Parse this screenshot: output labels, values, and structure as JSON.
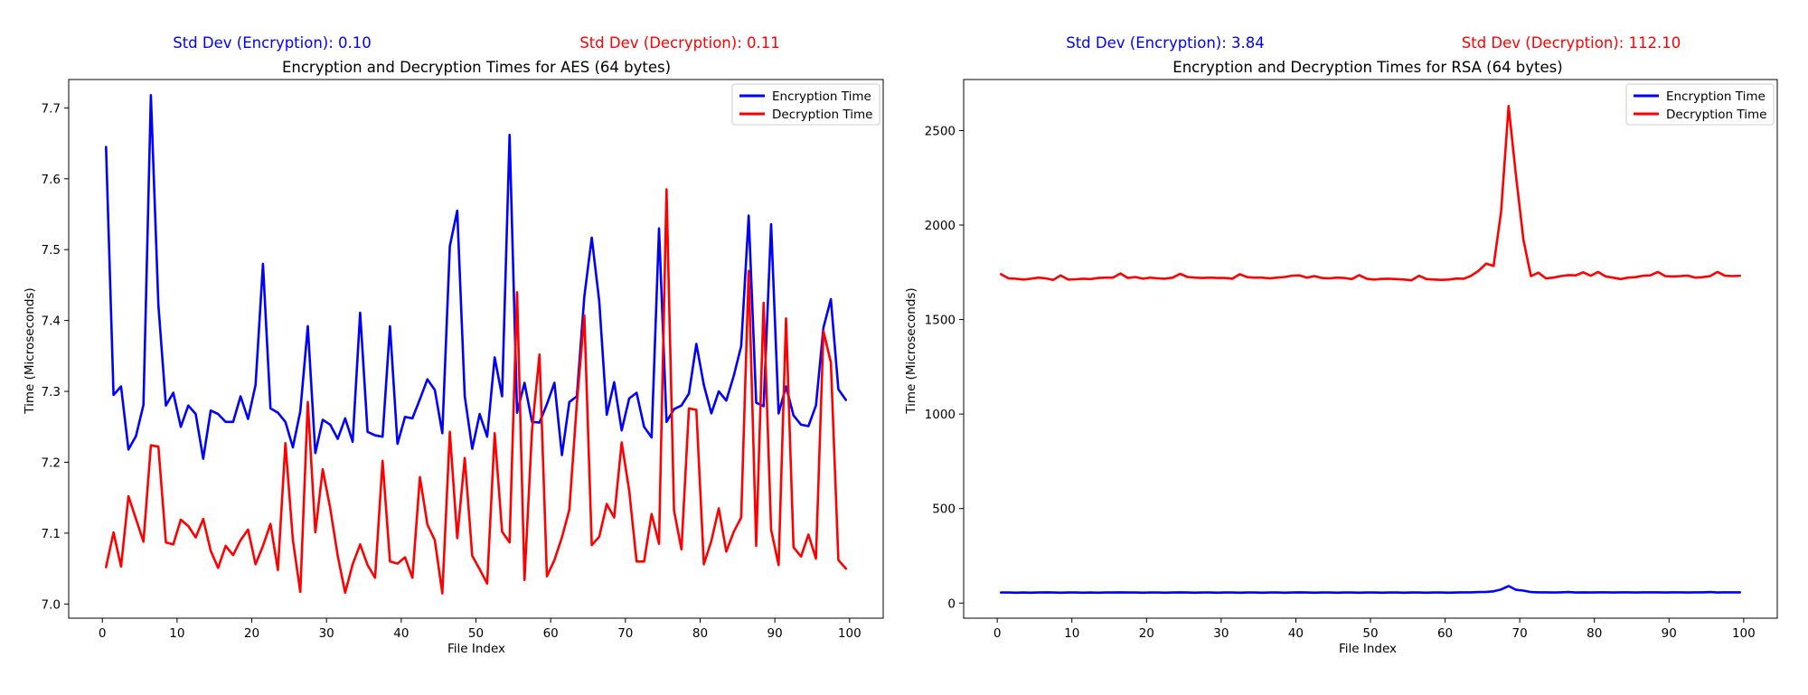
{
  "chart_data": [
    {
      "type": "line",
      "title": "Encryption and Decryption Times for AES (64 bytes)",
      "xlabel": "File Index",
      "ylabel": "Time (Microseconds)",
      "std_enc_text": "Std Dev (Encryption): 0.10",
      "std_dec_text": "Std Dev (Decryption): 0.11",
      "xlim": [
        -4.5,
        104.5
      ],
      "ylim": [
        6.98,
        7.74
      ],
      "xticks": [
        0,
        10,
        20,
        30,
        40,
        50,
        60,
        70,
        80,
        90,
        100
      ],
      "yticks": [
        7.0,
        7.1,
        7.2,
        7.3,
        7.4,
        7.5,
        7.6,
        7.7
      ],
      "ytick_decimals": 1,
      "legend": "top-right",
      "x": [
        0.5,
        1.5,
        2.5,
        3.5,
        4.5,
        5.5,
        6.5,
        7.5,
        8.5,
        9.5,
        10.5,
        11.5,
        12.5,
        13.5,
        14.5,
        15.5,
        16.5,
        17.5,
        18.5,
        19.5,
        20.5,
        21.5,
        22.5,
        23.5,
        24.5,
        25.5,
        26.5,
        27.5,
        28.5,
        29.5,
        30.5,
        31.5,
        32.5,
        33.5,
        34.5,
        35.5,
        36.5,
        37.5,
        38.5,
        39.5,
        40.5,
        41.5,
        42.5,
        43.5,
        44.5,
        45.5,
        46.5,
        47.5,
        48.5,
        49.5,
        50.5,
        51.5,
        52.5,
        53.5,
        54.5,
        55.5,
        56.5,
        57.5,
        58.5,
        59.5,
        60.5,
        61.5,
        62.5,
        63.5,
        64.5,
        65.5,
        66.5,
        67.5,
        68.5,
        69.5,
        70.5,
        71.5,
        72.5,
        73.5,
        74.5,
        75.5,
        76.5,
        77.5,
        78.5,
        79.5,
        80.5,
        81.5,
        82.5,
        83.5,
        84.5,
        85.5,
        86.5,
        87.5,
        88.5,
        89.5,
        90.5,
        91.5,
        92.5,
        93.5,
        94.5,
        95.5,
        96.5,
        97.5,
        98.5,
        99.5
      ],
      "series": [
        {
          "name": "Encryption Time",
          "color": "#0000ff",
          "values": [
            7.645,
            7.295,
            7.307,
            7.218,
            7.237,
            7.281,
            7.718,
            7.422,
            7.28,
            7.298,
            7.25,
            7.28,
            7.268,
            7.205,
            7.273,
            7.268,
            7.257,
            7.257,
            7.293,
            7.261,
            7.309,
            7.48,
            7.276,
            7.27,
            7.257,
            7.221,
            7.272,
            7.392,
            7.213,
            7.26,
            7.253,
            7.233,
            7.262,
            7.229,
            7.411,
            7.243,
            7.238,
            7.236,
            7.392,
            7.226,
            7.264,
            7.262,
            7.289,
            7.317,
            7.302,
            7.241,
            7.505,
            7.555,
            7.293,
            7.219,
            7.268,
            7.236,
            7.348,
            7.293,
            7.662,
            7.27,
            7.312,
            7.257,
            7.256,
            7.282,
            7.312,
            7.21,
            7.285,
            7.293,
            7.434,
            7.517,
            7.427,
            7.267,
            7.313,
            7.245,
            7.29,
            7.298,
            7.25,
            7.235,
            7.53,
            7.257,
            7.275,
            7.28,
            7.297,
            7.367,
            7.309,
            7.269,
            7.3,
            7.287,
            7.322,
            7.364,
            7.548,
            7.284,
            7.279,
            7.536,
            7.269,
            7.307,
            7.266,
            7.253,
            7.251,
            7.28,
            7.39,
            7.43,
            7.303,
            7.288
          ]
        },
        {
          "name": "Decryption Time",
          "color": "#ff0000",
          "values": [
            7.052,
            7.101,
            7.053,
            7.152,
            7.12,
            7.088,
            7.224,
            7.222,
            7.087,
            7.084,
            7.119,
            7.11,
            7.094,
            7.12,
            7.075,
            7.051,
            7.082,
            7.069,
            7.09,
            7.105,
            7.056,
            7.082,
            7.113,
            7.048,
            7.227,
            7.09,
            7.017,
            7.285,
            7.101,
            7.19,
            7.135,
            7.068,
            7.016,
            7.056,
            7.084,
            7.055,
            7.037,
            7.202,
            7.06,
            7.057,
            7.066,
            7.037,
            7.179,
            7.112,
            7.09,
            7.015,
            7.243,
            7.093,
            7.206,
            7.068,
            7.049,
            7.029,
            7.241,
            7.102,
            7.087,
            7.44,
            7.034,
            7.245,
            7.352,
            7.039,
            7.062,
            7.094,
            7.133,
            7.283,
            7.407,
            7.083,
            7.095,
            7.141,
            7.122,
            7.228,
            7.16,
            7.06,
            7.06,
            7.127,
            7.085,
            7.585,
            7.132,
            7.077,
            7.276,
            7.274,
            7.056,
            7.089,
            7.135,
            7.074,
            7.102,
            7.122,
            7.47,
            7.082,
            7.425,
            7.105,
            7.055,
            7.403,
            7.08,
            7.067,
            7.098,
            7.064,
            7.385,
            7.341,
            7.062,
            7.05
          ]
        }
      ]
    },
    {
      "type": "line",
      "title": "Encryption and Decryption Times for RSA (64 bytes)",
      "xlabel": "File Index",
      "ylabel": "Time (Microseconds)",
      "std_enc_text": "Std Dev (Encryption): 3.84",
      "std_dec_text": "Std Dev (Decryption): 112.10",
      "xlim": [
        -4.5,
        104.5
      ],
      "ylim": [
        -80,
        2770
      ],
      "xticks": [
        0,
        10,
        20,
        30,
        40,
        50,
        60,
        70,
        80,
        90,
        100
      ],
      "yticks": [
        0,
        500,
        1000,
        1500,
        2000,
        2500
      ],
      "ytick_decimals": 0,
      "legend": "top-right",
      "x": [
        0.5,
        1.5,
        2.5,
        3.5,
        4.5,
        5.5,
        6.5,
        7.5,
        8.5,
        9.5,
        10.5,
        11.5,
        12.5,
        13.5,
        14.5,
        15.5,
        16.5,
        17.5,
        18.5,
        19.5,
        20.5,
        21.5,
        22.5,
        23.5,
        24.5,
        25.5,
        26.5,
        27.5,
        28.5,
        29.5,
        30.5,
        31.5,
        32.5,
        33.5,
        34.5,
        35.5,
        36.5,
        37.5,
        38.5,
        39.5,
        40.5,
        41.5,
        42.5,
        43.5,
        44.5,
        45.5,
        46.5,
        47.5,
        48.5,
        49.5,
        50.5,
        51.5,
        52.5,
        53.5,
        54.5,
        55.5,
        56.5,
        57.5,
        58.5,
        59.5,
        60.5,
        61.5,
        62.5,
        63.5,
        64.5,
        65.5,
        66.5,
        67.5,
        68.5,
        69.5,
        70.5,
        71.5,
        72.5,
        73.5,
        74.5,
        75.5,
        76.5,
        77.5,
        78.5,
        79.5,
        80.5,
        81.5,
        82.5,
        83.5,
        84.5,
        85.5,
        86.5,
        87.5,
        88.5,
        89.5,
        90.5,
        91.5,
        92.5,
        93.5,
        94.5,
        95.5,
        96.5,
        97.5,
        98.5,
        99.5
      ],
      "series": [
        {
          "name": "Encryption Time",
          "color": "#0000ff",
          "values": [
            56,
            56,
            55,
            56,
            55,
            56,
            57,
            56,
            55,
            56,
            56,
            55,
            56,
            55,
            56,
            56,
            57,
            56,
            56,
            55,
            56,
            56,
            55,
            56,
            57,
            56,
            55,
            56,
            56,
            55,
            56,
            56,
            55,
            56,
            56,
            55,
            56,
            56,
            55,
            56,
            57,
            56,
            55,
            56,
            56,
            55,
            56,
            56,
            55,
            56,
            56,
            55,
            56,
            56,
            55,
            56,
            56,
            55,
            56,
            56,
            55,
            56,
            57,
            57,
            58,
            59,
            62,
            72,
            90,
            70,
            66,
            58,
            57,
            57,
            56,
            57,
            58,
            56,
            57,
            56,
            57,
            57,
            56,
            57,
            57,
            56,
            57,
            57,
            57,
            56,
            57,
            57,
            56,
            57,
            57,
            58,
            56,
            57,
            57,
            57
          ]
        },
        {
          "name": "Decryption Time",
          "color": "#ff0000",
          "values": [
            1740,
            1718,
            1716,
            1712,
            1716,
            1722,
            1718,
            1710,
            1734,
            1712,
            1713,
            1716,
            1714,
            1720,
            1722,
            1722,
            1744,
            1720,
            1725,
            1716,
            1722,
            1718,
            1716,
            1722,
            1742,
            1725,
            1722,
            1720,
            1722,
            1720,
            1720,
            1716,
            1740,
            1724,
            1722,
            1722,
            1718,
            1722,
            1725,
            1732,
            1734,
            1722,
            1730,
            1720,
            1718,
            1722,
            1720,
            1714,
            1735,
            1716,
            1712,
            1715,
            1716,
            1714,
            1712,
            1708,
            1732,
            1714,
            1712,
            1710,
            1712,
            1717,
            1716,
            1732,
            1758,
            1796,
            1784,
            2070,
            2630,
            2260,
            1920,
            1730,
            1748,
            1718,
            1722,
            1730,
            1735,
            1734,
            1750,
            1732,
            1752,
            1728,
            1722,
            1714,
            1722,
            1724,
            1732,
            1734,
            1752,
            1730,
            1728,
            1730,
            1733,
            1722,
            1724,
            1730,
            1752,
            1732,
            1730,
            1732
          ]
        }
      ]
    }
  ]
}
